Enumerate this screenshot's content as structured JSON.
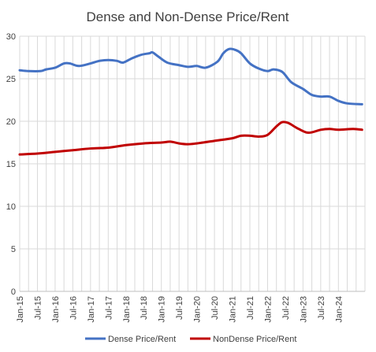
{
  "chart_data": {
    "type": "line",
    "title": "Dense and Non-Dense Price/Rent",
    "xlabel": "",
    "ylabel": "",
    "ylim": [
      0,
      30
    ],
    "y_ticks": [
      0,
      5,
      10,
      15,
      20,
      25,
      30
    ],
    "x_tick_labels": [
      "Jan-15",
      "Jul-15",
      "Jan-16",
      "Jul-16",
      "Jan-17",
      "Jul-17",
      "Jan-18",
      "Jul-18",
      "Jan-19",
      "Jul-19",
      "Jan-20",
      "Jul-20",
      "Jan-21",
      "Jul-21",
      "Jan-22",
      "Jul-22",
      "Jan-23",
      "Jul-23",
      "Jan-24"
    ],
    "grid": "vertical and horizontal",
    "legend_position": "bottom",
    "series": [
      {
        "name": "Dense Price/Rent",
        "color": "#4472C4",
        "points": [
          [
            "Jan-15",
            26.0
          ],
          [
            "Apr-15",
            25.9
          ],
          [
            "Aug-15",
            25.9
          ],
          [
            "Oct-15",
            26.1
          ],
          [
            "Jan-16",
            26.3
          ],
          [
            "Apr-16",
            26.8
          ],
          [
            "Jun-16",
            26.8
          ],
          [
            "Sep-16",
            26.5
          ],
          [
            "Jan-17",
            26.8
          ],
          [
            "Apr-17",
            27.1
          ],
          [
            "Jul-17",
            27.2
          ],
          [
            "Oct-17",
            27.1
          ],
          [
            "Dec-17",
            26.9
          ],
          [
            "Mar-18",
            27.4
          ],
          [
            "Jun-18",
            27.8
          ],
          [
            "Sep-18",
            28.0
          ],
          [
            "Oct-18",
            28.1
          ],
          [
            "Dec-18",
            27.6
          ],
          [
            "Mar-19",
            26.9
          ],
          [
            "Jul-19",
            26.6
          ],
          [
            "Oct-19",
            26.4
          ],
          [
            "Jan-20",
            26.5
          ],
          [
            "Apr-20",
            26.3
          ],
          [
            "Aug-20",
            27.0
          ],
          [
            "Oct-20",
            28.0
          ],
          [
            "Dec-20",
            28.5
          ],
          [
            "Feb-21",
            28.4
          ],
          [
            "Apr-21",
            28.0
          ],
          [
            "Jul-21",
            26.8
          ],
          [
            "Oct-21",
            26.2
          ],
          [
            "Jan-22",
            25.9
          ],
          [
            "Mar-22",
            26.1
          ],
          [
            "Jun-22",
            25.8
          ],
          [
            "Sep-22",
            24.6
          ],
          [
            "Jan-23",
            23.8
          ],
          [
            "Apr-23",
            23.1
          ],
          [
            "Jul-23",
            22.9
          ],
          [
            "Oct-23",
            22.9
          ],
          [
            "Jan-24",
            22.4
          ],
          [
            "Apr-24",
            22.1
          ],
          [
            "Sep-24",
            22.0
          ]
        ]
      },
      {
        "name": "NonDense Price/Rent",
        "color": "#C00000",
        "points": [
          [
            "Jan-15",
            16.1
          ],
          [
            "Jul-15",
            16.2
          ],
          [
            "Jan-16",
            16.4
          ],
          [
            "Jul-16",
            16.6
          ],
          [
            "Jan-17",
            16.8
          ],
          [
            "Jul-17",
            16.9
          ],
          [
            "Jan-18",
            17.2
          ],
          [
            "Jul-18",
            17.4
          ],
          [
            "Jan-19",
            17.5
          ],
          [
            "Apr-19",
            17.6
          ],
          [
            "Jul-19",
            17.4
          ],
          [
            "Oct-19",
            17.3
          ],
          [
            "Jan-20",
            17.4
          ],
          [
            "Jul-20",
            17.7
          ],
          [
            "Jan-21",
            18.0
          ],
          [
            "Apr-21",
            18.3
          ],
          [
            "Jul-21",
            18.3
          ],
          [
            "Oct-21",
            18.2
          ],
          [
            "Jan-22",
            18.4
          ],
          [
            "Apr-22",
            19.4
          ],
          [
            "Jun-22",
            19.9
          ],
          [
            "Aug-22",
            19.8
          ],
          [
            "Nov-22",
            19.2
          ],
          [
            "Feb-23",
            18.7
          ],
          [
            "Apr-23",
            18.7
          ],
          [
            "Jul-23",
            19.0
          ],
          [
            "Oct-23",
            19.1
          ],
          [
            "Jan-24",
            19.0
          ],
          [
            "Jun-24",
            19.1
          ],
          [
            "Sep-24",
            19.0
          ]
        ]
      }
    ]
  }
}
